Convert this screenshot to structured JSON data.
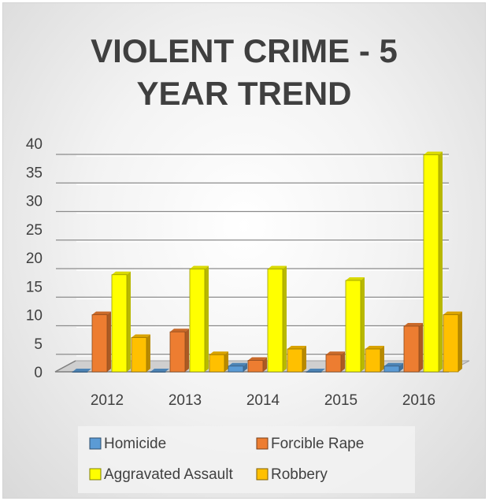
{
  "chart_data": {
    "type": "bar",
    "title_lines": [
      "VIOLENT CRIME - 5",
      "YEAR TREND"
    ],
    "categories": [
      "2012",
      "2013",
      "2014",
      "2015",
      "2016"
    ],
    "series": [
      {
        "name": "Homicide",
        "values": [
          0,
          0,
          1,
          0,
          1
        ],
        "color": "#5b9bd5"
      },
      {
        "name": "Forcible Rape",
        "values": [
          10,
          7,
          2,
          3,
          8
        ],
        "color": "#ed7d31"
      },
      {
        "name": "Aggravated Assault",
        "values": [
          17,
          18,
          18,
          16,
          38
        ],
        "color": "#ffff00"
      },
      {
        "name": "Robbery",
        "values": [
          6,
          3,
          4,
          4,
          10
        ],
        "color": "#ffc000"
      }
    ],
    "ylim": [
      0,
      40
    ],
    "yticks": [
      "0",
      "5",
      "10",
      "15",
      "20",
      "25",
      "30",
      "35",
      "40"
    ],
    "grid": true,
    "legend_position": "bottom"
  }
}
